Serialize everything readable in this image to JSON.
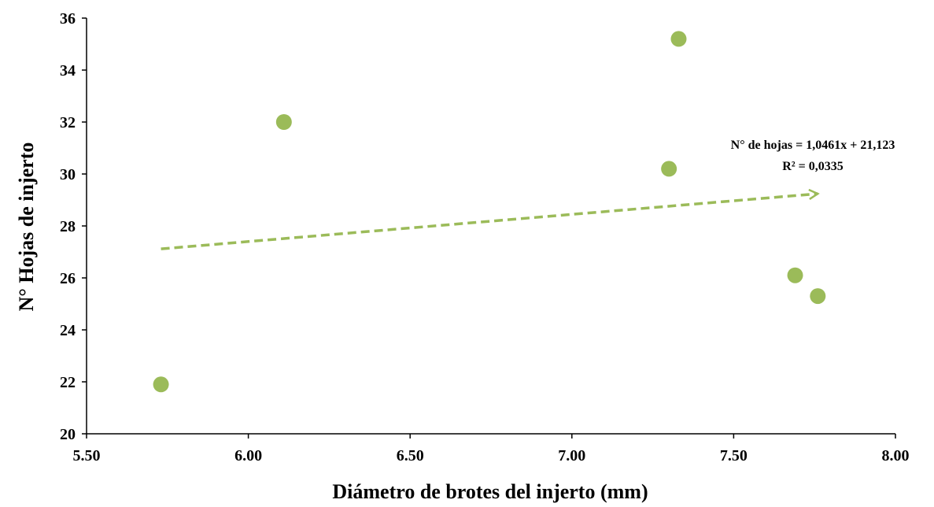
{
  "chart_data": {
    "type": "scatter",
    "title": "",
    "xlabel": "Diámetro de brotes del injerto (mm)",
    "ylabel": "N° Hojas de injerto",
    "xlim": [
      5.5,
      8.0
    ],
    "ylim": [
      20,
      36
    ],
    "xticks": [
      "5.50",
      "6.00",
      "6.50",
      "7.00",
      "7.50",
      "8.00"
    ],
    "yticks": [
      "20",
      "22",
      "24",
      "26",
      "28",
      "30",
      "32",
      "34",
      "36"
    ],
    "grid": false,
    "series": [
      {
        "points": [
          {
            "x": 5.73,
            "y": 21.9
          },
          {
            "x": 6.11,
            "y": 32.0
          },
          {
            "x": 7.3,
            "y": 30.2
          },
          {
            "x": 7.33,
            "y": 35.2
          },
          {
            "x": 7.69,
            "y": 26.1
          },
          {
            "x": 7.76,
            "y": 25.3
          }
        ]
      }
    ],
    "trendline": {
      "type": "linear",
      "style": "dashed-arrow",
      "slope": 1.0461,
      "intercept": 21.123,
      "x_range": [
        5.73,
        7.76
      ]
    },
    "annotations": {
      "equation": "N° de hojas = 1,0461x + 21,123",
      "r2": "R² = 0,0335"
    },
    "colors": {
      "marker": "#9bbb59",
      "trendline": "#9bbb59",
      "axis": "#000000"
    }
  }
}
